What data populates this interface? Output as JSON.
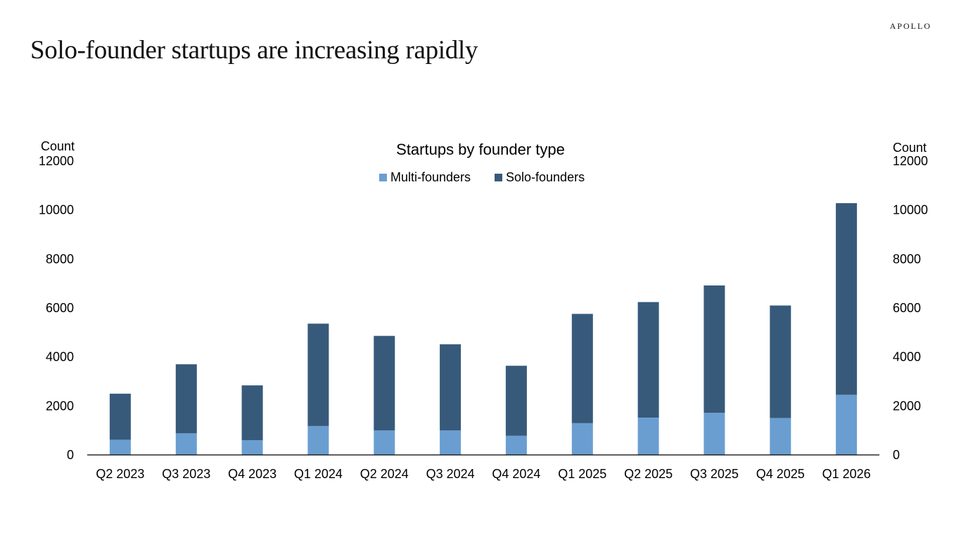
{
  "brand": "APOLLO",
  "page_title": "Solo-founder startups are increasing rapidly",
  "colors": {
    "multi_founders": "#6a9ed1",
    "solo_founders": "#375a7b",
    "axis": "#000000"
  },
  "chart_data": {
    "type": "bar",
    "stacked": true,
    "title": "Startups by founder type",
    "ylabel_left": "Count",
    "ylabel_right": "Count",
    "ylim": [
      0,
      12000
    ],
    "yticks": [
      0,
      2000,
      4000,
      6000,
      8000,
      10000,
      12000
    ],
    "categories": [
      "Q2 2023",
      "Q3 2023",
      "Q4 2023",
      "Q1 2024",
      "Q2 2024",
      "Q3 2024",
      "Q4 2024",
      "Q1 2025",
      "Q2 2025",
      "Q3 2025",
      "Q4 2025",
      "Q1 2026"
    ],
    "series": [
      {
        "name": "Multi-founders",
        "values": [
          620,
          880,
          600,
          1180,
          1000,
          1000,
          780,
          1300,
          1520,
          1720,
          1500,
          2450
        ]
      },
      {
        "name": "Solo-founders",
        "values": [
          1880,
          2820,
          2240,
          4180,
          3860,
          3520,
          2860,
          4460,
          4720,
          5200,
          4600,
          7830
        ]
      }
    ],
    "legend_position": "top-center",
    "grid": false
  }
}
